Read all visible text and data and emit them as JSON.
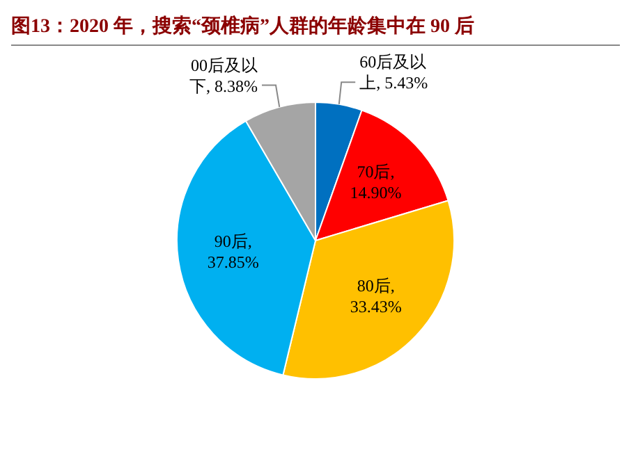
{
  "chart_data": {
    "type": "pie",
    "title": "图13：2020 年，搜索“颈椎病”人群的年龄集中在 90 后",
    "categories": [
      "60后及以上",
      "70后",
      "80后",
      "90后",
      "00后及以下"
    ],
    "values": [
      5.43,
      14.9,
      33.43,
      37.85,
      8.38
    ],
    "value_labels": [
      ", 5.43%",
      ", 14.90%",
      ", 33.43%",
      ", 37.85%",
      ", 8.38%"
    ],
    "colors": [
      "#0070c0",
      "#ff0000",
      "#ffc000",
      "#00b0f0",
      "#a5a5a5"
    ],
    "legend": false
  }
}
